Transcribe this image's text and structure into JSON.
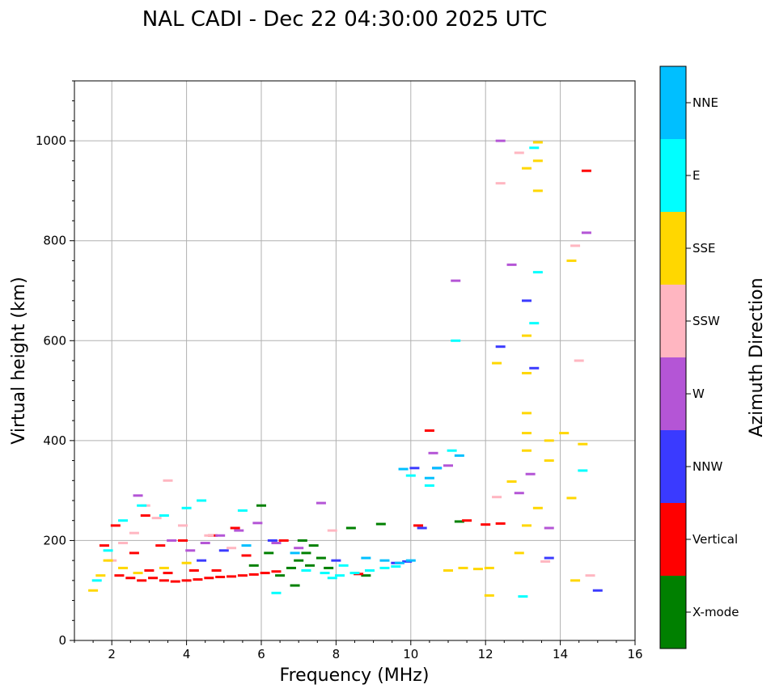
{
  "chart_data": {
    "type": "scatter",
    "title": "NAL CADI - Dec 22 04:30:00 2025 UTC",
    "xlabel": "Frequency (MHz)",
    "ylabel": "Virtual height (km)",
    "xlim": [
      1,
      16
    ],
    "ylim": [
      0,
      1120
    ],
    "xticks": [
      2,
      4,
      6,
      8,
      10,
      12,
      14,
      16
    ],
    "yticks": [
      0,
      200,
      400,
      600,
      800,
      1000
    ],
    "grid": true,
    "colorbar": {
      "label": "Azimuth Direction",
      "categories": [
        {
          "name": "X-mode",
          "color": "#008000"
        },
        {
          "name": "Vertical",
          "color": "#ff0000"
        },
        {
          "name": "NNW",
          "color": "#3a3aff"
        },
        {
          "name": "W",
          "color": "#b455d6"
        },
        {
          "name": "SSW",
          "color": "#ffb6c1"
        },
        {
          "name": "SSE",
          "color": "#ffd700"
        },
        {
          "name": "E",
          "color": "#00ffff"
        },
        {
          "name": "NNE",
          "color": "#00bfff"
        }
      ]
    },
    "series": [
      {
        "name": "X-mode",
        "points": [
          [
            6.8,
            145
          ],
          [
            7.0,
            160
          ],
          [
            7.2,
            175
          ],
          [
            7.4,
            190
          ],
          [
            7.3,
            150
          ],
          [
            7.6,
            165
          ],
          [
            7.8,
            145
          ],
          [
            6.5,
            130
          ],
          [
            8.4,
            225
          ],
          [
            9.2,
            233
          ],
          [
            11.3,
            238
          ],
          [
            6.9,
            110
          ],
          [
            5.8,
            150
          ],
          [
            7.1,
            200
          ],
          [
            8.8,
            130
          ],
          [
            6.2,
            175
          ],
          [
            6.0,
            270
          ]
        ]
      },
      {
        "name": "Vertical",
        "points": [
          [
            2.2,
            130
          ],
          [
            2.5,
            125
          ],
          [
            2.8,
            120
          ],
          [
            3.1,
            125
          ],
          [
            3.4,
            120
          ],
          [
            3.7,
            118
          ],
          [
            4.0,
            120
          ],
          [
            4.3,
            122
          ],
          [
            4.6,
            125
          ],
          [
            4.9,
            127
          ],
          [
            5.2,
            128
          ],
          [
            5.5,
            130
          ],
          [
            5.8,
            132
          ],
          [
            6.1,
            135
          ],
          [
            6.4,
            138
          ],
          [
            3.0,
            140
          ],
          [
            3.5,
            135
          ],
          [
            4.2,
            140
          ],
          [
            4.8,
            140
          ],
          [
            2.6,
            175
          ],
          [
            3.3,
            190
          ],
          [
            3.9,
            200
          ],
          [
            4.7,
            210
          ],
          [
            5.3,
            225
          ],
          [
            1.8,
            190
          ],
          [
            2.1,
            230
          ],
          [
            2.9,
            250
          ],
          [
            8.6,
            133
          ],
          [
            10.2,
            230
          ],
          [
            10.5,
            420
          ],
          [
            11.5,
            240
          ],
          [
            12.0,
            232
          ],
          [
            12.4,
            234
          ],
          [
            14.7,
            940
          ],
          [
            6.6,
            200
          ],
          [
            5.6,
            170
          ]
        ]
      },
      {
        "name": "NNW",
        "points": [
          [
            9.6,
            155
          ],
          [
            9.9,
            158
          ],
          [
            10.1,
            345
          ],
          [
            10.7,
            345
          ],
          [
            13.1,
            680
          ],
          [
            12.4,
            588
          ],
          [
            15.0,
            100
          ],
          [
            13.7,
            165
          ],
          [
            5.0,
            180
          ],
          [
            6.3,
            200
          ],
          [
            4.4,
            160
          ],
          [
            8.0,
            160
          ],
          [
            10.3,
            225
          ],
          [
            13.3,
            545
          ]
        ]
      },
      {
        "name": "W",
        "points": [
          [
            4.1,
            180
          ],
          [
            4.5,
            195
          ],
          [
            4.9,
            210
          ],
          [
            5.4,
            220
          ],
          [
            5.9,
            235
          ],
          [
            6.4,
            195
          ],
          [
            7.0,
            185
          ],
          [
            7.6,
            275
          ],
          [
            12.4,
            1000
          ],
          [
            12.7,
            752
          ],
          [
            11.2,
            720
          ],
          [
            14.7,
            816
          ],
          [
            12.9,
            295
          ],
          [
            13.2,
            333
          ],
          [
            10.6,
            375
          ],
          [
            11.0,
            350
          ],
          [
            13.7,
            225
          ],
          [
            3.6,
            200
          ],
          [
            2.7,
            290
          ]
        ]
      },
      {
        "name": "SSW",
        "points": [
          [
            2.0,
            160
          ],
          [
            2.3,
            195
          ],
          [
            2.6,
            215
          ],
          [
            3.2,
            245
          ],
          [
            3.9,
            230
          ],
          [
            4.6,
            210
          ],
          [
            5.2,
            185
          ],
          [
            7.9,
            220
          ],
          [
            12.4,
            915
          ],
          [
            12.9,
            976
          ],
          [
            14.4,
            790
          ],
          [
            14.8,
            130
          ],
          [
            12.3,
            287
          ],
          [
            13.6,
            158
          ],
          [
            14.5,
            560
          ],
          [
            3.5,
            320
          ],
          [
            2.9,
            270
          ]
        ]
      },
      {
        "name": "SSE",
        "points": [
          [
            1.5,
            100
          ],
          [
            1.7,
            130
          ],
          [
            1.9,
            160
          ],
          [
            2.3,
            145
          ],
          [
            2.7,
            135
          ],
          [
            3.4,
            145
          ],
          [
            4.0,
            155
          ],
          [
            11.0,
            140
          ],
          [
            11.4,
            145
          ],
          [
            11.8,
            143
          ],
          [
            12.1,
            145
          ],
          [
            12.3,
            555
          ],
          [
            12.7,
            318
          ],
          [
            13.1,
            945
          ],
          [
            13.4,
            960
          ],
          [
            13.4,
            900
          ],
          [
            13.1,
            610
          ],
          [
            13.1,
            535
          ],
          [
            13.1,
            455
          ],
          [
            13.1,
            415
          ],
          [
            13.1,
            380
          ],
          [
            13.4,
            997
          ],
          [
            14.3,
            760
          ],
          [
            14.3,
            285
          ],
          [
            14.4,
            120
          ],
          [
            13.7,
            400
          ],
          [
            13.7,
            360
          ],
          [
            14.6,
            393
          ],
          [
            14.1,
            415
          ],
          [
            12.9,
            175
          ],
          [
            12.1,
            90
          ],
          [
            13.1,
            230
          ],
          [
            13.4,
            265
          ]
        ]
      },
      {
        "name": "E",
        "points": [
          [
            1.6,
            120
          ],
          [
            1.9,
            180
          ],
          [
            2.3,
            240
          ],
          [
            2.8,
            270
          ],
          [
            3.4,
            250
          ],
          [
            4.0,
            265
          ],
          [
            4.4,
            280
          ],
          [
            7.2,
            140
          ],
          [
            7.7,
            135
          ],
          [
            8.1,
            130
          ],
          [
            8.5,
            135
          ],
          [
            8.9,
            140
          ],
          [
            9.3,
            145
          ],
          [
            9.6,
            148
          ],
          [
            8.2,
            150
          ],
          [
            7.9,
            125
          ],
          [
            10.0,
            330
          ],
          [
            11.1,
            380
          ],
          [
            11.2,
            600
          ],
          [
            13.4,
            737
          ],
          [
            13.3,
            986
          ],
          [
            13.3,
            635
          ],
          [
            14.6,
            340
          ],
          [
            13.0,
            88
          ],
          [
            6.4,
            95
          ],
          [
            5.5,
            260
          ],
          [
            10.5,
            310
          ]
        ]
      },
      {
        "name": "NNE",
        "points": [
          [
            9.8,
            343
          ],
          [
            10.7,
            345
          ],
          [
            8.8,
            165
          ],
          [
            9.3,
            160
          ],
          [
            9.7,
            155
          ],
          [
            10.0,
            160
          ],
          [
            6.9,
            175
          ],
          [
            5.6,
            190
          ],
          [
            10.5,
            325
          ],
          [
            11.3,
            370
          ]
        ]
      }
    ]
  }
}
